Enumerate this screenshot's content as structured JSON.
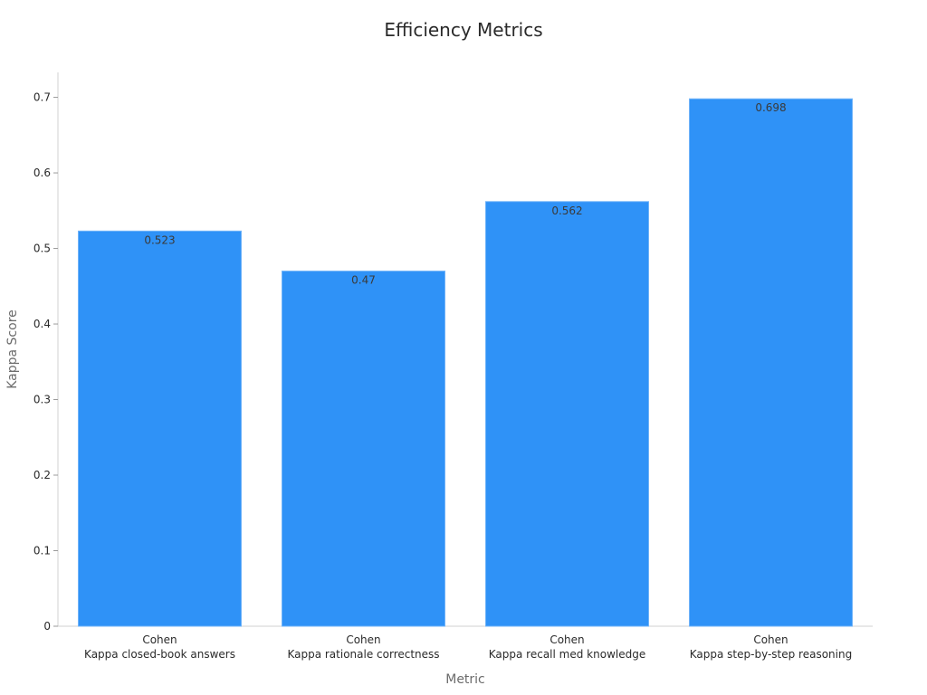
{
  "chart_data": {
    "type": "bar",
    "title": "Efficiency Metrics",
    "xlabel": "Metric",
    "ylabel": "Kappa Score",
    "categories": [
      [
        "Cohen",
        "Kappa closed-book answers"
      ],
      [
        "Cohen",
        "Kappa rationale correctness"
      ],
      [
        "Cohen",
        "Kappa recall med knowledge"
      ],
      [
        "Cohen",
        "Kappa step-by-step reasoning"
      ]
    ],
    "values": [
      0.523,
      0.47,
      0.562,
      0.698
    ],
    "data_labels": [
      "0.523",
      "0.47",
      "0.562",
      "0.698"
    ],
    "ylim": [
      0,
      0.733
    ],
    "yticks": [
      0,
      0.1,
      0.2,
      0.3,
      0.4,
      0.5,
      0.6,
      0.7
    ],
    "ytick_labels": [
      "0",
      "0.1",
      "0.2",
      "0.3",
      "0.4",
      "0.5",
      "0.6",
      "0.7"
    ],
    "grid": false,
    "legend": "none",
    "bar_color": "#2f92f7"
  }
}
